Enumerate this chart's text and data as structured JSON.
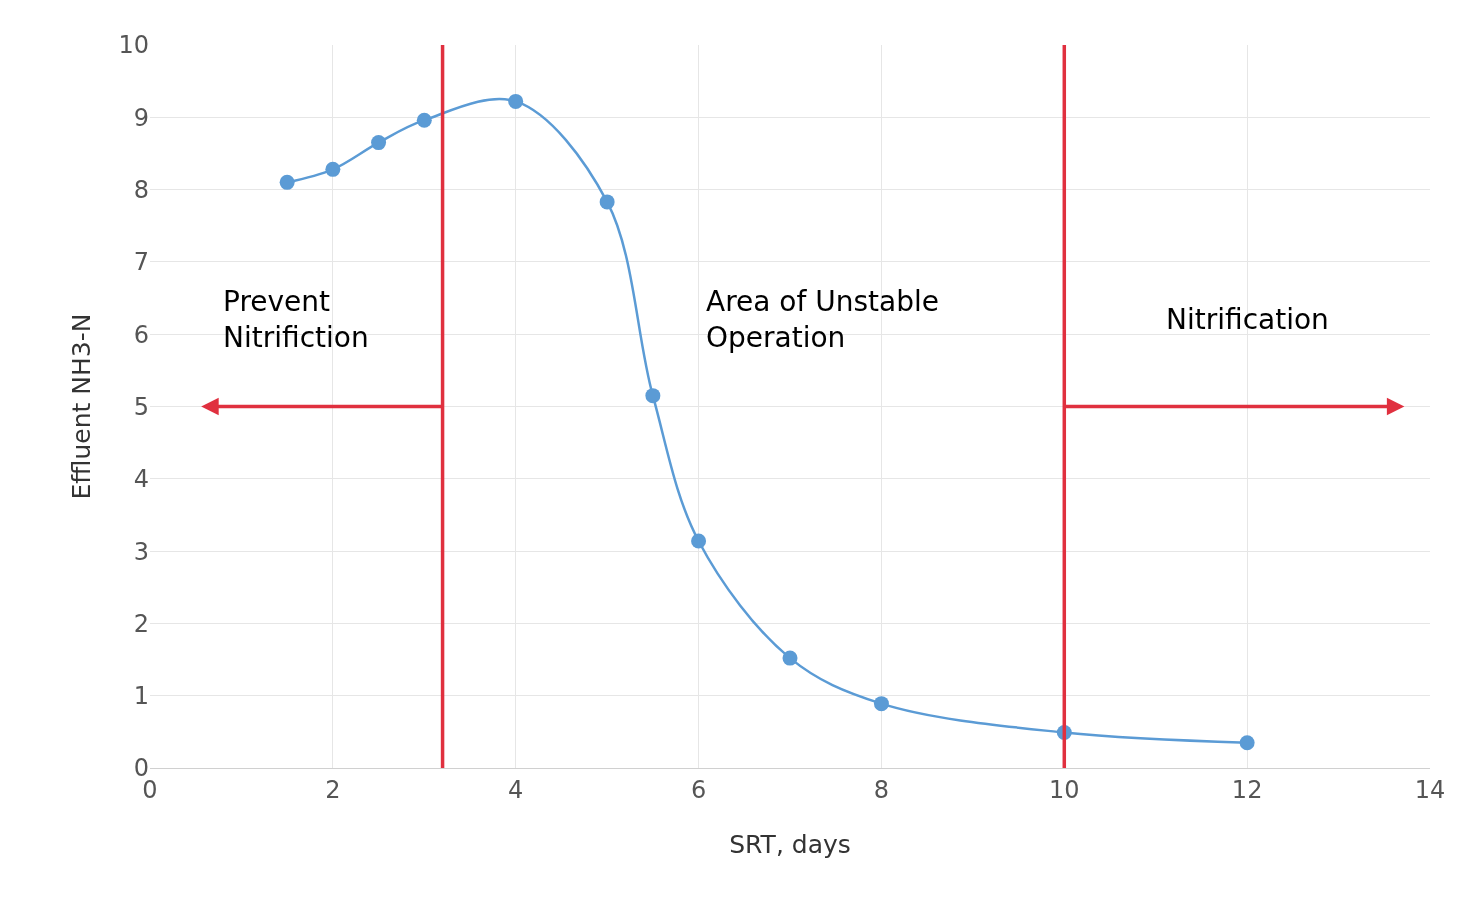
{
  "chart_data": {
    "type": "line",
    "xlabel": "SRT, days",
    "ylabel": "Effluent NH3-N",
    "x": [
      1.5,
      2,
      2.5,
      3,
      4,
      5,
      5.5,
      6,
      7,
      8,
      10,
      12
    ],
    "series": [
      {
        "color": "#5b9bd5",
        "values": [
          8.1,
          8.28,
          8.65,
          8.96,
          9.22,
          7.83,
          5.15,
          3.14,
          1.52,
          0.89,
          0.49,
          0.35
        ]
      }
    ],
    "xlim": [
      0,
      14
    ],
    "xticks": [
      0,
      2,
      4,
      6,
      8,
      10,
      12,
      14
    ],
    "ylim": [
      0,
      10
    ],
    "yticks": [
      0,
      1,
      2,
      3,
      4,
      5,
      6,
      7,
      8,
      9,
      10
    ],
    "grid": true,
    "marker": "circle",
    "line_style": "solid",
    "ref_lines": [
      {
        "axis": "x",
        "value": 3.2,
        "color": "#e0303f"
      },
      {
        "axis": "x",
        "value": 10,
        "color": "#e0303f"
      }
    ],
    "annotations": [
      "Prevent\nNitrifiction",
      "Area of Unstable\nOperation",
      "Nitrification"
    ]
  }
}
